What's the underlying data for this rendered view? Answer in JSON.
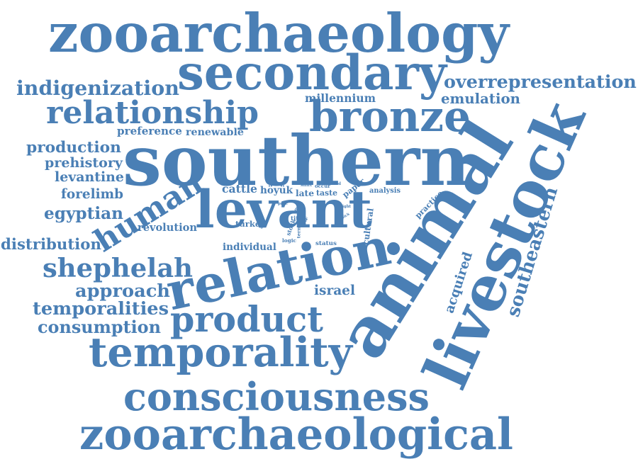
{
  "color": "#4a7fb5",
  "words": [
    {
      "id": "zooarchaeology",
      "text": "zooarchaeology"
    },
    {
      "id": "secondary",
      "text": "secondary"
    },
    {
      "id": "indigenization",
      "text": "indigenization"
    },
    {
      "id": "overrepresentation",
      "text": "overrepresentation"
    },
    {
      "id": "emulation",
      "text": "emulation"
    },
    {
      "id": "millennium",
      "text": "millennium"
    },
    {
      "id": "relationship",
      "text": "relationship"
    },
    {
      "id": "bronze",
      "text": "bronze"
    },
    {
      "id": "preference",
      "text": "preference"
    },
    {
      "id": "renewable",
      "text": "renewable"
    },
    {
      "id": "southern",
      "text": "southern"
    },
    {
      "id": "production",
      "text": "production"
    },
    {
      "id": "prehistory",
      "text": "prehistory"
    },
    {
      "id": "levantine",
      "text": "levantine"
    },
    {
      "id": "forelimb",
      "text": "forelimb"
    },
    {
      "id": "egyptian",
      "text": "egyptian"
    },
    {
      "id": "levant",
      "text": "levant"
    },
    {
      "id": "human",
      "text": "human"
    },
    {
      "id": "revolution",
      "text": "revolution"
    },
    {
      "id": "cattle",
      "text": "cattle"
    },
    {
      "id": "hoyuk",
      "text": "höyük"
    },
    {
      "id": "late",
      "text": "late"
    },
    {
      "id": "taste",
      "text": "taste"
    },
    {
      "id": "shift",
      "text": "shift"
    },
    {
      "id": "occur",
      "text": "occur"
    },
    {
      "id": "food",
      "text": "food"
    },
    {
      "id": "paper",
      "text": "paper"
    },
    {
      "id": "analysis",
      "text": "analysis"
    },
    {
      "id": "light",
      "text": "light"
    },
    {
      "id": "practice",
      "text": "practice"
    },
    {
      "id": "proc",
      "text": "proc"
    },
    {
      "id": "most",
      "text": "most"
    },
    {
      "id": "life",
      "text": "life"
    },
    {
      "id": "pick",
      "text": "pick"
    },
    {
      "id": "titris",
      "text": "titriş"
    },
    {
      "id": "stock",
      "text": "stock"
    },
    {
      "id": "term",
      "text": "term"
    },
    {
      "id": "logic",
      "text": "logic"
    },
    {
      "id": "status",
      "text": "status"
    },
    {
      "id": "cultural",
      "text": "cultural"
    },
    {
      "id": "turkey",
      "text": "turkey"
    },
    {
      "id": "distribution",
      "text": "distribution"
    },
    {
      "id": "individual",
      "text": "individual"
    },
    {
      "id": "shephelah",
      "text": "shephelah"
    },
    {
      "id": "relation",
      "text": "relation"
    },
    {
      "id": "approach",
      "text": "approach"
    },
    {
      "id": "israel",
      "text": "israel"
    },
    {
      "id": "temporalities",
      "text": "temporalities"
    },
    {
      "id": "product",
      "text": "product"
    },
    {
      "id": "consumption",
      "text": "consumption"
    },
    {
      "id": "temporality",
      "text": "temporality"
    },
    {
      "id": "animal",
      "text": "animal"
    },
    {
      "id": "livestock",
      "text": "livestock"
    },
    {
      "id": "southeastern",
      "text": "southeastern"
    },
    {
      "id": "acquired",
      "text": "acquired"
    },
    {
      "id": "consciousness",
      "text": "consciousness"
    },
    {
      "id": "zooarchaeological",
      "text": "zooarchaeological"
    }
  ]
}
